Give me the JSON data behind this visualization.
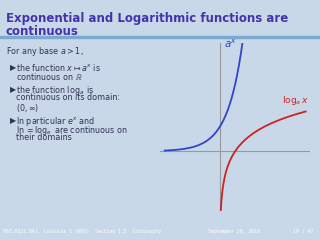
{
  "title_line1": "Exponential and Logarithmic functions are",
  "title_line2": "continuous",
  "title_color": "#4433aa",
  "bg_color": "#c8d8e8",
  "text_color": "#333355",
  "footer_bg": "#7aaad0",
  "footer_text_color": "#ffffff",
  "footer_left": "V63.0121.041, Calculus I (NYU)",
  "footer_mid": "Section 1.5  Continuity",
  "footer_right": "September 20, 2010",
  "footer_page": "19 / 47",
  "exp_color": "#3344cc",
  "log_color": "#cc2222",
  "axes_color": "#999999",
  "title_fontsize": 8.5,
  "body_fontsize": 5.8,
  "footer_fontsize": 3.5
}
